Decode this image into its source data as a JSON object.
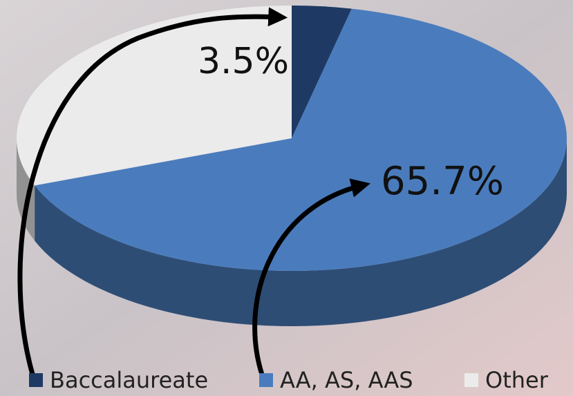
{
  "chart_data": {
    "type": "pie",
    "categories": [
      "Baccalaureate",
      "AA, AS, AAS",
      "Other"
    ],
    "values": [
      3.5,
      65.7,
      30.8
    ],
    "value_labels": [
      "3.5%",
      "65.7%",
      null
    ],
    "colors": [
      "#1e3a64",
      "#4a7cbd",
      "#ebebeb"
    ],
    "legend": "bottom"
  }
}
